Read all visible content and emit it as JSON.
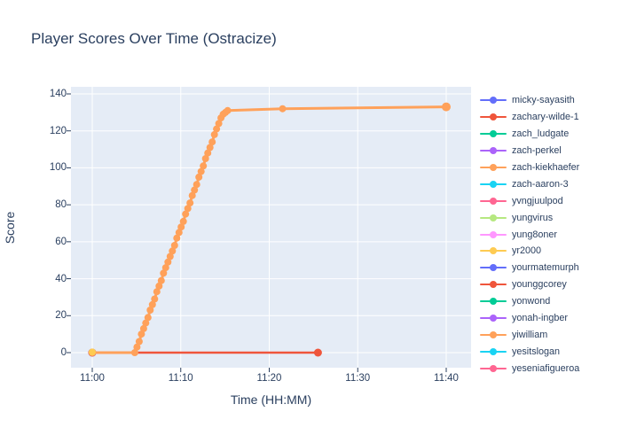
{
  "chart_data": {
    "type": "line",
    "title": "Player Scores Over Time (Ostracize)",
    "xlabel": "Time (HH:MM)",
    "ylabel": "Score",
    "x_tick_labels": [
      "11:00",
      "11:10",
      "11:20",
      "11:30",
      "11:40"
    ],
    "x_tick_minutes": [
      0,
      10,
      20,
      30,
      40
    ],
    "y_ticks": [
      0,
      20,
      40,
      60,
      80,
      100,
      120,
      140
    ],
    "xlim_minutes": [
      -2.4,
      42.8
    ],
    "ylim": [
      -8,
      144
    ],
    "grid": true,
    "legend_position": "right",
    "plot_bg": "#e5ecf6",
    "grid_color": "#ffffff",
    "text_color": "#2a3f5f",
    "series": [
      {
        "name": "micky-sayasith",
        "color": "#636EFA",
        "line_width": 0,
        "marker": 4.5,
        "points": [
          [
            0,
            0
          ]
        ]
      },
      {
        "name": "zachary-wilde-1",
        "color": "#EF553B",
        "line_width": 2.5,
        "marker": 4.5,
        "points": [
          [
            0,
            0
          ],
          [
            25.5,
            0
          ]
        ]
      },
      {
        "name": "zach_ludgate",
        "color": "#00CC96",
        "points": []
      },
      {
        "name": "zach-perkel",
        "color": "#AB63FA",
        "points": []
      },
      {
        "name": "zach-kiekhaefer",
        "color": "#FFA15A",
        "line_width": 3,
        "marker": 4,
        "last_marker": 5,
        "points": [
          [
            0,
            0
          ],
          [
            4.8,
            0
          ],
          [
            5.05,
            3
          ],
          [
            5.3,
            6
          ],
          [
            5.55,
            10
          ],
          [
            5.8,
            13
          ],
          [
            6.05,
            16
          ],
          [
            6.3,
            19
          ],
          [
            6.55,
            23
          ],
          [
            6.8,
            26
          ],
          [
            7.05,
            29
          ],
          [
            7.3,
            33
          ],
          [
            7.55,
            36
          ],
          [
            7.8,
            39
          ],
          [
            8.05,
            43
          ],
          [
            8.3,
            46
          ],
          [
            8.55,
            49
          ],
          [
            8.8,
            52
          ],
          [
            9.05,
            55
          ],
          [
            9.3,
            58
          ],
          [
            9.55,
            62
          ],
          [
            9.8,
            65
          ],
          [
            10.05,
            68
          ],
          [
            10.3,
            71
          ],
          [
            10.55,
            75
          ],
          [
            10.8,
            78
          ],
          [
            11.05,
            81
          ],
          [
            11.3,
            85
          ],
          [
            11.55,
            88
          ],
          [
            11.8,
            91
          ],
          [
            12.05,
            95
          ],
          [
            12.3,
            98
          ],
          [
            12.55,
            101
          ],
          [
            12.8,
            105
          ],
          [
            13.05,
            108
          ],
          [
            13.3,
            111
          ],
          [
            13.55,
            114
          ],
          [
            13.8,
            118
          ],
          [
            14.05,
            121
          ],
          [
            14.3,
            124
          ],
          [
            14.55,
            127
          ],
          [
            14.8,
            129
          ],
          [
            15.05,
            130
          ],
          [
            15.3,
            131
          ],
          [
            21.5,
            132
          ],
          [
            40,
            133
          ]
        ]
      },
      {
        "name": "zach-aaron-3",
        "color": "#19D3F3",
        "points": []
      },
      {
        "name": "yvngjuulpod",
        "color": "#FF6692",
        "points": []
      },
      {
        "name": "yungvirus",
        "color": "#B6E880",
        "points": []
      },
      {
        "name": "yung8oner",
        "color": "#FF97FF",
        "points": []
      },
      {
        "name": "yr2000",
        "color": "#FECB52",
        "line_width": 0,
        "marker": 4,
        "points": [
          [
            0,
            0.3
          ]
        ]
      },
      {
        "name": "yourmatemurph",
        "color": "#636EFA",
        "points": []
      },
      {
        "name": "younggcorey",
        "color": "#EF553B",
        "points": []
      },
      {
        "name": "yonwond",
        "color": "#00CC96",
        "points": []
      },
      {
        "name": "yonah-ingber",
        "color": "#AB63FA",
        "points": []
      },
      {
        "name": "yiwilliam",
        "color": "#FFA15A",
        "points": []
      },
      {
        "name": "yesitslogan",
        "color": "#19D3F3",
        "points": []
      },
      {
        "name": "yeseniafigueroa",
        "color": "#FF6692",
        "points": []
      }
    ]
  }
}
